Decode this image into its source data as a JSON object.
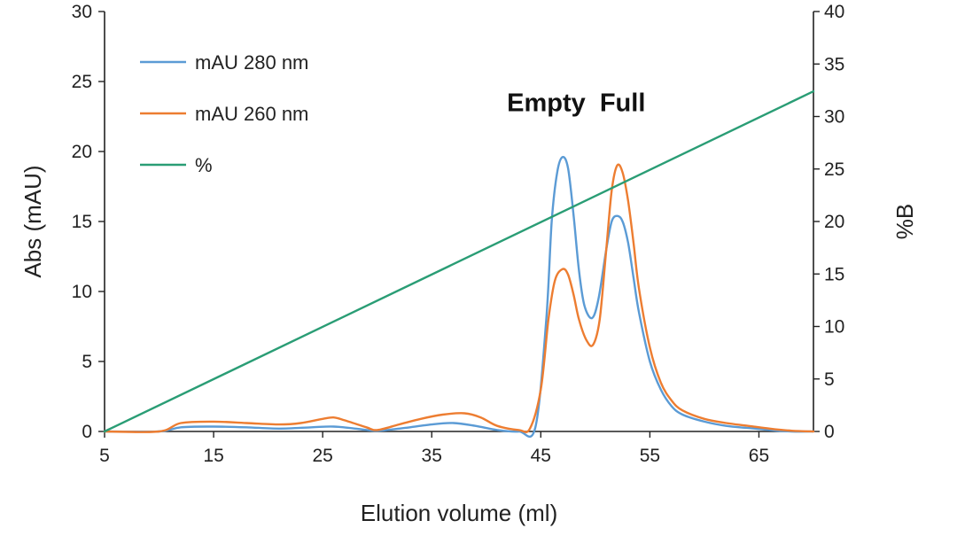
{
  "chart_data": {
    "type": "line",
    "xlabel": "Elution volume (ml)",
    "ylabel": "Abs (mAU)",
    "y2label": "%B",
    "xlim": [
      5,
      70
    ],
    "ylim": [
      0,
      30
    ],
    "y2lim": [
      0,
      40
    ],
    "xticks": [
      5,
      15,
      25,
      35,
      45,
      55,
      65
    ],
    "yticks": [
      0,
      5,
      10,
      15,
      20,
      25,
      30
    ],
    "y2ticks": [
      0,
      5,
      10,
      15,
      20,
      25,
      30,
      35,
      40
    ],
    "grid": false,
    "legend": "top-left",
    "series": [
      {
        "name": "mAU 280 nm",
        "axis": "left",
        "color": "#5b9bd5",
        "points": [
          [
            5,
            0
          ],
          [
            10,
            0
          ],
          [
            12,
            0.3
          ],
          [
            15,
            0.35
          ],
          [
            18,
            0.3
          ],
          [
            21,
            0.2
          ],
          [
            24,
            0.3
          ],
          [
            26,
            0.35
          ],
          [
            28,
            0.2
          ],
          [
            30,
            0.05
          ],
          [
            32,
            0.2
          ],
          [
            35,
            0.5
          ],
          [
            37,
            0.6
          ],
          [
            39,
            0.4
          ],
          [
            41,
            0.1
          ],
          [
            43,
            0
          ],
          [
            44.5,
            0.3
          ],
          [
            45.5,
            8
          ],
          [
            46,
            15
          ],
          [
            46.5,
            18.5
          ],
          [
            47,
            19.6
          ],
          [
            47.5,
            18.8
          ],
          [
            48,
            15.5
          ],
          [
            48.5,
            11.5
          ],
          [
            49,
            9
          ],
          [
            49.7,
            8.1
          ],
          [
            50.3,
            9.5
          ],
          [
            51,
            13
          ],
          [
            51.5,
            15
          ],
          [
            52,
            15.4
          ],
          [
            52.5,
            15
          ],
          [
            53,
            13.5
          ],
          [
            53.5,
            11
          ],
          [
            54,
            8.5
          ],
          [
            55,
            5
          ],
          [
            56,
            3
          ],
          [
            57,
            1.8
          ],
          [
            58,
            1.2
          ],
          [
            60,
            0.7
          ],
          [
            62,
            0.4
          ],
          [
            64,
            0.25
          ],
          [
            66,
            0.1
          ],
          [
            68,
            0
          ],
          [
            70,
            0
          ]
        ]
      },
      {
        "name": "mAU 260 nm",
        "axis": "left",
        "color": "#ed7d31",
        "points": [
          [
            5,
            0
          ],
          [
            10,
            0
          ],
          [
            12,
            0.6
          ],
          [
            15,
            0.7
          ],
          [
            18,
            0.6
          ],
          [
            21,
            0.5
          ],
          [
            23,
            0.6
          ],
          [
            25,
            0.9
          ],
          [
            26,
            1.0
          ],
          [
            27,
            0.8
          ],
          [
            29,
            0.3
          ],
          [
            30,
            0.1
          ],
          [
            32,
            0.5
          ],
          [
            34,
            0.9
          ],
          [
            36,
            1.2
          ],
          [
            38,
            1.3
          ],
          [
            39.5,
            1.0
          ],
          [
            41,
            0.4
          ],
          [
            43,
            0.1
          ],
          [
            44,
            0.2
          ],
          [
            45,
            3
          ],
          [
            45.7,
            8
          ],
          [
            46.3,
            10.8
          ],
          [
            47,
            11.6
          ],
          [
            47.5,
            11.2
          ],
          [
            48,
            9.8
          ],
          [
            48.5,
            8
          ],
          [
            49.2,
            6.5
          ],
          [
            49.8,
            6.2
          ],
          [
            50.4,
            8
          ],
          [
            51,
            13
          ],
          [
            51.5,
            17.2
          ],
          [
            52,
            19
          ],
          [
            52.5,
            18.5
          ],
          [
            53,
            16.5
          ],
          [
            53.5,
            13.5
          ],
          [
            54,
            10.2
          ],
          [
            55,
            6
          ],
          [
            56,
            3.5
          ],
          [
            57,
            2.2
          ],
          [
            58,
            1.5
          ],
          [
            60,
            0.9
          ],
          [
            62,
            0.6
          ],
          [
            64,
            0.4
          ],
          [
            66,
            0.2
          ],
          [
            68,
            0.05
          ],
          [
            70,
            0
          ]
        ]
      },
      {
        "name": "%",
        "axis": "right",
        "color": "#2a9d75",
        "points": [
          [
            5,
            0
          ],
          [
            70,
            32.4
          ]
        ]
      }
    ],
    "annotations": [
      {
        "text": "Empty",
        "x": 45.5,
        "y": 23.5
      },
      {
        "text": "Full",
        "x": 52.5,
        "y": 23.5
      }
    ]
  }
}
